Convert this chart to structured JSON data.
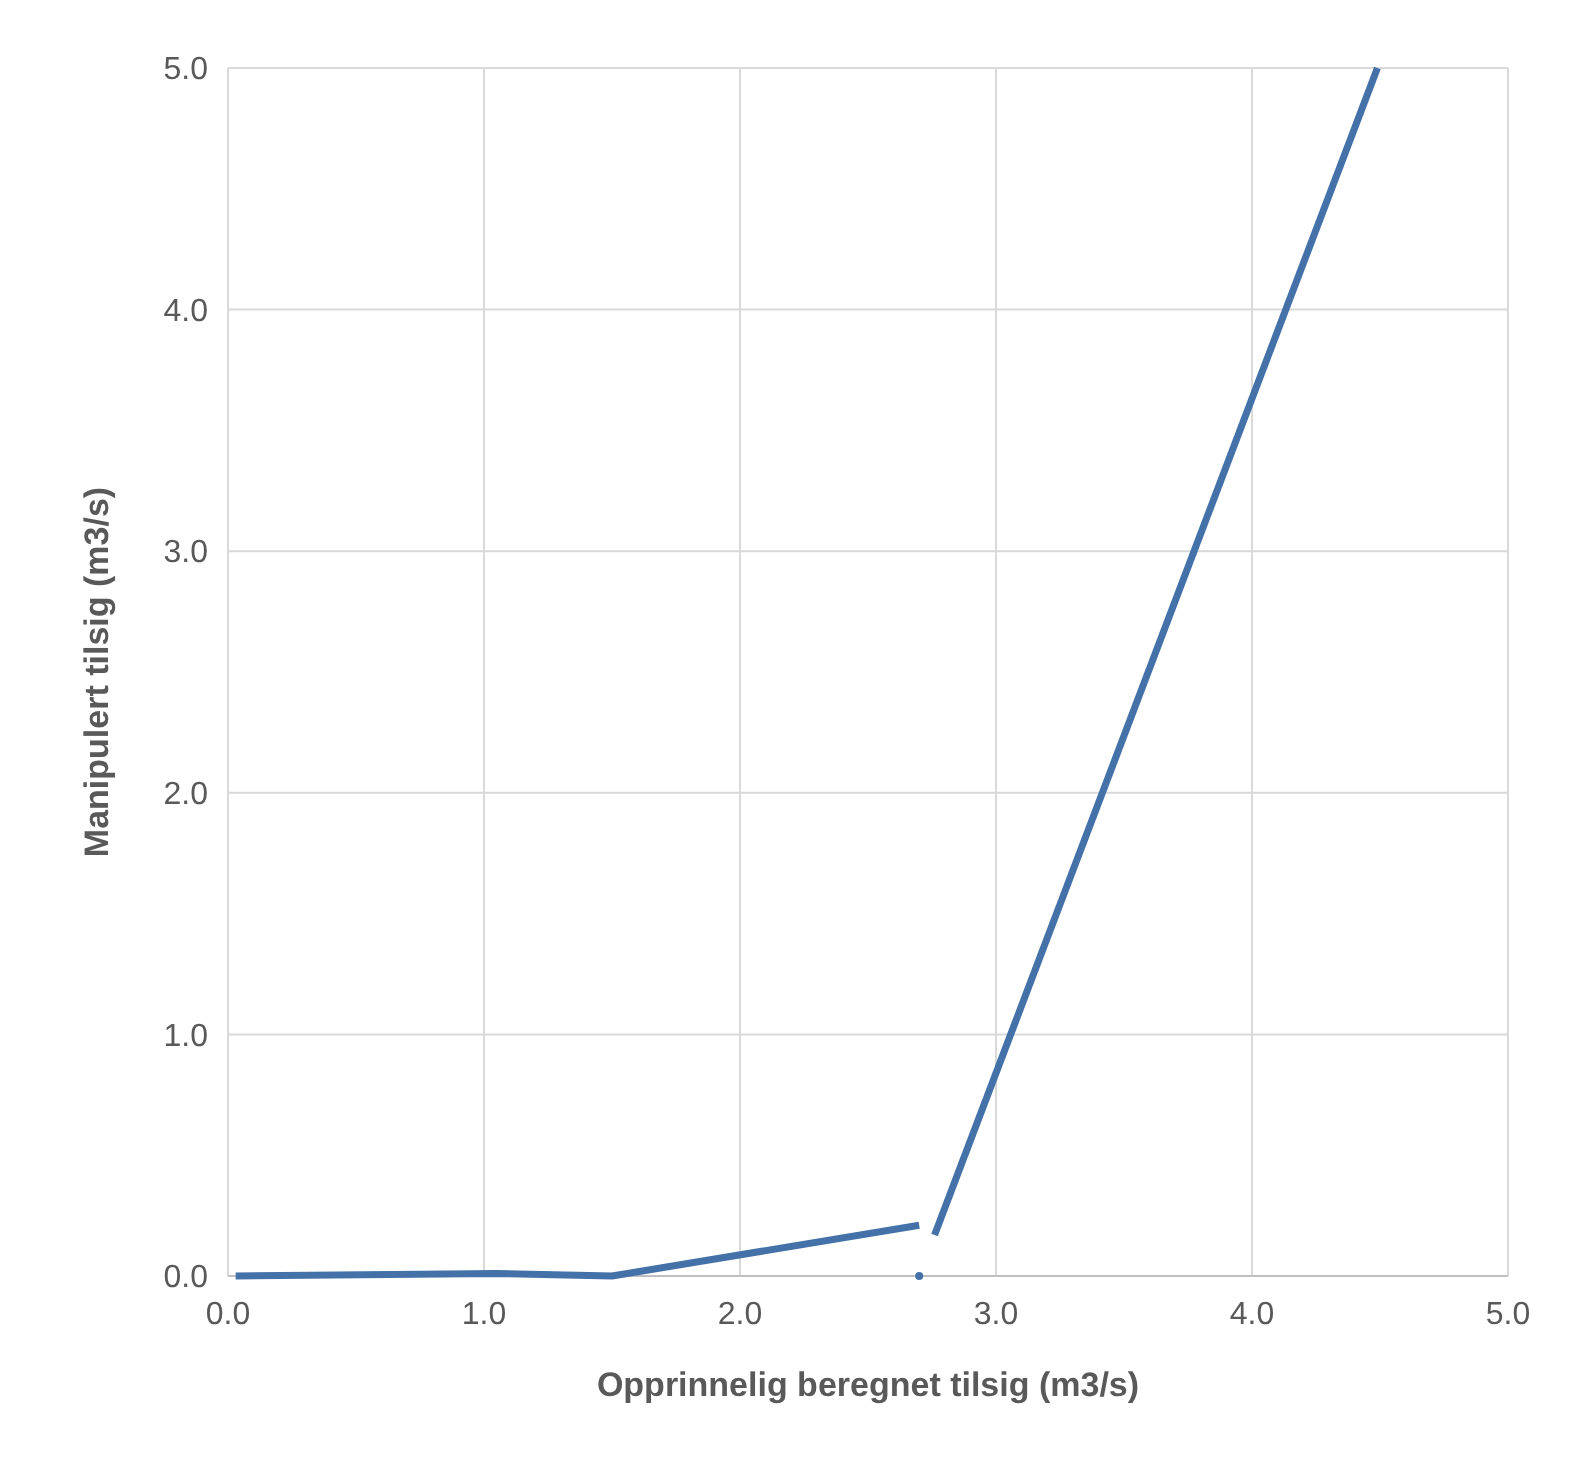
{
  "chart_data": {
    "type": "line",
    "xlabel": "Opprinnelig beregnet tilsig (m3/s)",
    "ylabel": "Manipulert tilsig (m3/s)",
    "xlim": [
      0,
      5
    ],
    "ylim": [
      0,
      5
    ],
    "xticks": [
      {
        "value": 0,
        "label": "0.0"
      },
      {
        "value": 1,
        "label": "1.0"
      },
      {
        "value": 2,
        "label": "2.0"
      },
      {
        "value": 3,
        "label": "3.0"
      },
      {
        "value": 4,
        "label": "4.0"
      },
      {
        "value": 5,
        "label": "5.0"
      }
    ],
    "yticks": [
      {
        "value": 0,
        "label": "0.0"
      },
      {
        "value": 1,
        "label": "1.0"
      },
      {
        "value": 2,
        "label": "2.0"
      },
      {
        "value": 3,
        "label": "3.0"
      },
      {
        "value": 4,
        "label": "4.0"
      },
      {
        "value": 5,
        "label": "5.0"
      }
    ],
    "grid": true,
    "marker": "none",
    "line_style": "solid",
    "series": [
      {
        "color": "#4472a8",
        "x": [
          0.03,
          1.05,
          1.5,
          2.7
        ],
        "values": [
          0,
          0.01,
          0,
          0.21
        ]
      },
      {
        "type": "scatter",
        "marker": "circle",
        "color": "#4472a8",
        "x": [
          2.7
        ],
        "values": [
          0
        ]
      },
      {
        "color": "#4472a8",
        "x": [
          2.76,
          4.49
        ],
        "values": [
          0.17,
          5.0
        ]
      }
    ]
  }
}
